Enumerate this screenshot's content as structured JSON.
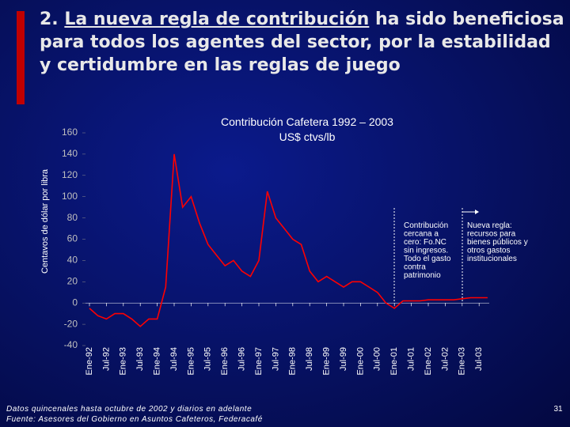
{
  "title_prefix": "2.",
  "title_underlined": "La nueva regla de contribución",
  "title_rest": "ha sido beneficiosa para todos los agentes del sector, por la estabilidad y certidumbre en las reglas de juego",
  "chart_data": {
    "type": "line",
    "title": "Contribución Cafetera 1992 – 2003",
    "subtitle": "US$ ctvs/lb",
    "y_label": "Centavos de dólar por libra",
    "categories": [
      "Ene-92",
      null,
      "Jul-92",
      null,
      "Ene-93",
      null,
      "Jul-93",
      null,
      "Ene-94",
      null,
      "Jul-94",
      null,
      "Ene-95",
      null,
      "Jul-95",
      null,
      "Ene-96",
      null,
      "Jul-96",
      null,
      "Ene-97",
      null,
      "Jul-97",
      null,
      "Ene-98",
      null,
      "Jul-98",
      null,
      "Ene-99",
      null,
      "Jul-99",
      null,
      "Ene-00",
      null,
      "Jul-00",
      null,
      "Ene-01",
      null,
      "Jul-01",
      null,
      "Ene-02",
      null,
      "Jul-02",
      null,
      "Ene-03",
      null,
      "Jul-03",
      null
    ],
    "values": [
      -5,
      -12,
      -15,
      -10,
      -10,
      -15,
      -22,
      -15,
      -15,
      15,
      140,
      90,
      100,
      75,
      55,
      45,
      35,
      40,
      30,
      25,
      40,
      105,
      80,
      70,
      60,
      55,
      30,
      20,
      25,
      20,
      15,
      20,
      20,
      15,
      10,
      0,
      -5,
      2,
      2,
      2,
      3,
      3,
      3,
      3,
      4,
      5,
      5,
      5
    ],
    "color": "#ff0000",
    "ylim": [
      -40,
      160
    ],
    "yticks": [
      -40,
      -20,
      0,
      20,
      40,
      60,
      80,
      100,
      120,
      140,
      160
    ],
    "annotations": [
      [
        "Contribución",
        "cercana a",
        "cero: Fo.NC",
        "sin ingresos.",
        "Todo el gasto",
        "contra",
        "patrimonio"
      ],
      [
        "Nueva regla:",
        "recursos para",
        "bienes públicos y",
        "otros gastos",
        "institucionales"
      ]
    ]
  },
  "footnotes": [
    "Datos quincenales hasta octubre de 2002 y diarios en adelante",
    "Fuente: Asesores del Gobierno en Asuntos Cafeteros, Federacafé"
  ],
  "page_number": "31"
}
